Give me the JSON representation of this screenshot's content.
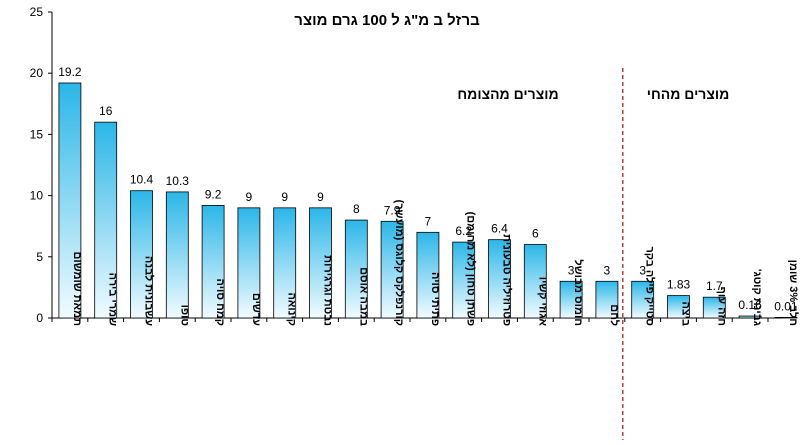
{
  "chart_data": {
    "type": "bar",
    "title": "ברזל ב מ\"ג ל 100 גרם מוצר",
    "ylim": [
      0,
      25
    ],
    "yticks": [
      0,
      5,
      10,
      15,
      20,
      25
    ],
    "grid": false,
    "bar_color_top": "#2bb6e8",
    "bar_color_bottom": "#f2fbff",
    "divider_color": "#b22222",
    "categories": [
      "תמאת שומשום",
      "שמרי בירה",
      "עשבונית לבנה",
      "טופו",
      "קמח סויה",
      "עדשים",
      "קינואה",
      "נבטת וגרגירות",
      "במבה אוסם",
      "קורנפלקס קלוגס (מועשר)",
      "פתיתי סויה",
      "פשתן טחון (לא מחומם)",
      "פטרוזיליה טבעונית",
      "אגוזי קשיו",
      "חומוס מבושל",
      "לחם",
      "סטייק פילה בקר",
      "ביצה",
      "חזה עוף",
      "גבינת קוטג'",
      "חלב 3% שומן"
    ],
    "values": [
      19.2,
      16,
      10.4,
      10.3,
      9.2,
      9,
      9,
      9,
      8,
      7.9,
      7,
      6.2,
      6.4,
      6,
      3,
      3,
      3,
      1.83,
      1.7,
      0.16,
      0.01
    ],
    "value_labels": [
      "19.2",
      "16",
      "10.4",
      "10.3",
      "9.2",
      "9",
      "9",
      "9",
      "8",
      "7.9",
      "7",
      "6.2",
      "6.4",
      "6",
      "3",
      "3",
      "3",
      "1.83",
      "1.7",
      "0.16",
      "0.01"
    ],
    "sections": [
      {
        "label": "מוצרים מהצומח",
        "from_index": 0,
        "to_index": 15
      },
      {
        "label": "מוצרים מהחי",
        "from_index": 16,
        "to_index": 20
      }
    ]
  }
}
